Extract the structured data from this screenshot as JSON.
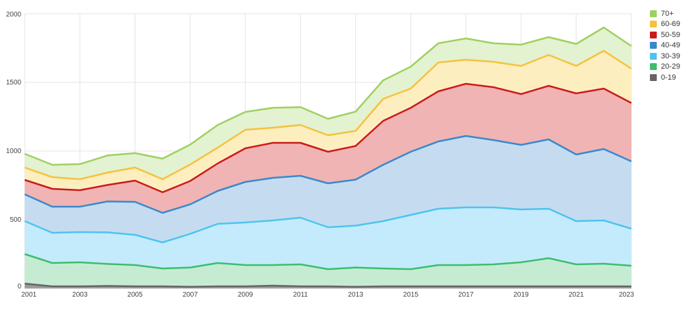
{
  "chart_data": {
    "type": "area",
    "stacked": true,
    "x": [
      2001,
      2002,
      2003,
      2004,
      2005,
      2006,
      2007,
      2008,
      2009,
      2010,
      2011,
      2012,
      2013,
      2014,
      2015,
      2016,
      2017,
      2018,
      2019,
      2020,
      2021,
      2022,
      2023
    ],
    "x_ticks": [
      2001,
      2003,
      2005,
      2007,
      2009,
      2011,
      2013,
      2015,
      2017,
      2019,
      2021,
      2023
    ],
    "ylim": [
      0,
      2000
    ],
    "y_ticks": [
      0,
      500,
      1000,
      1500,
      2000
    ],
    "grid": true,
    "legend_position": "top-right",
    "series": [
      {
        "name": "0-19",
        "color": "#666666",
        "fill": "#9a9a9a",
        "values": [
          35,
          15,
          15,
          18,
          15,
          15,
          12,
          15,
          15,
          20,
          15,
          15,
          12,
          15,
          15,
          15,
          15,
          15,
          15,
          15,
          15,
          15,
          15
        ]
      },
      {
        "name": "20-29",
        "color": "#3cbd6e",
        "fill": "#c5ecd3",
        "values": [
          215,
          170,
          175,
          160,
          155,
          130,
          140,
          170,
          155,
          150,
          160,
          125,
          140,
          130,
          125,
          155,
          155,
          160,
          175,
          205,
          160,
          165,
          150
        ]
      },
      {
        "name": "30-39",
        "color": "#4ec3f0",
        "fill": "#c4ebfb",
        "values": [
          240,
          220,
          220,
          230,
          220,
          190,
          245,
          285,
          310,
          325,
          340,
          305,
          305,
          345,
          395,
          410,
          420,
          415,
          385,
          360,
          315,
          315,
          270
        ]
      },
      {
        "name": "40-49",
        "color": "#3a88cc",
        "fill": "#c5dcf0",
        "values": [
          195,
          190,
          185,
          225,
          240,
          215,
          215,
          240,
          295,
          310,
          305,
          320,
          335,
          410,
          460,
          490,
          520,
          490,
          470,
          505,
          485,
          520,
          490
        ]
      },
      {
        "name": "50-59",
        "color": "#cc1a1a",
        "fill": "#f0b4b4",
        "values": [
          105,
          130,
          120,
          120,
          155,
          150,
          170,
          200,
          245,
          255,
          240,
          230,
          245,
          320,
          320,
          365,
          380,
          385,
          370,
          390,
          445,
          440,
          425
        ]
      },
      {
        "name": "60-69",
        "color": "#f5c23c",
        "fill": "#fdeec0",
        "values": [
          90,
          85,
          80,
          90,
          95,
          95,
          120,
          115,
          135,
          110,
          130,
          120,
          110,
          160,
          140,
          210,
          175,
          185,
          205,
          225,
          200,
          275,
          250
        ]
      },
      {
        "name": "70+",
        "color": "#9fd060",
        "fill": "#e3f2d0",
        "values": [
          100,
          90,
          110,
          125,
          105,
          150,
          145,
          165,
          130,
          145,
          130,
          120,
          140,
          135,
          160,
          140,
          155,
          135,
          155,
          130,
          160,
          170,
          165
        ]
      }
    ]
  }
}
